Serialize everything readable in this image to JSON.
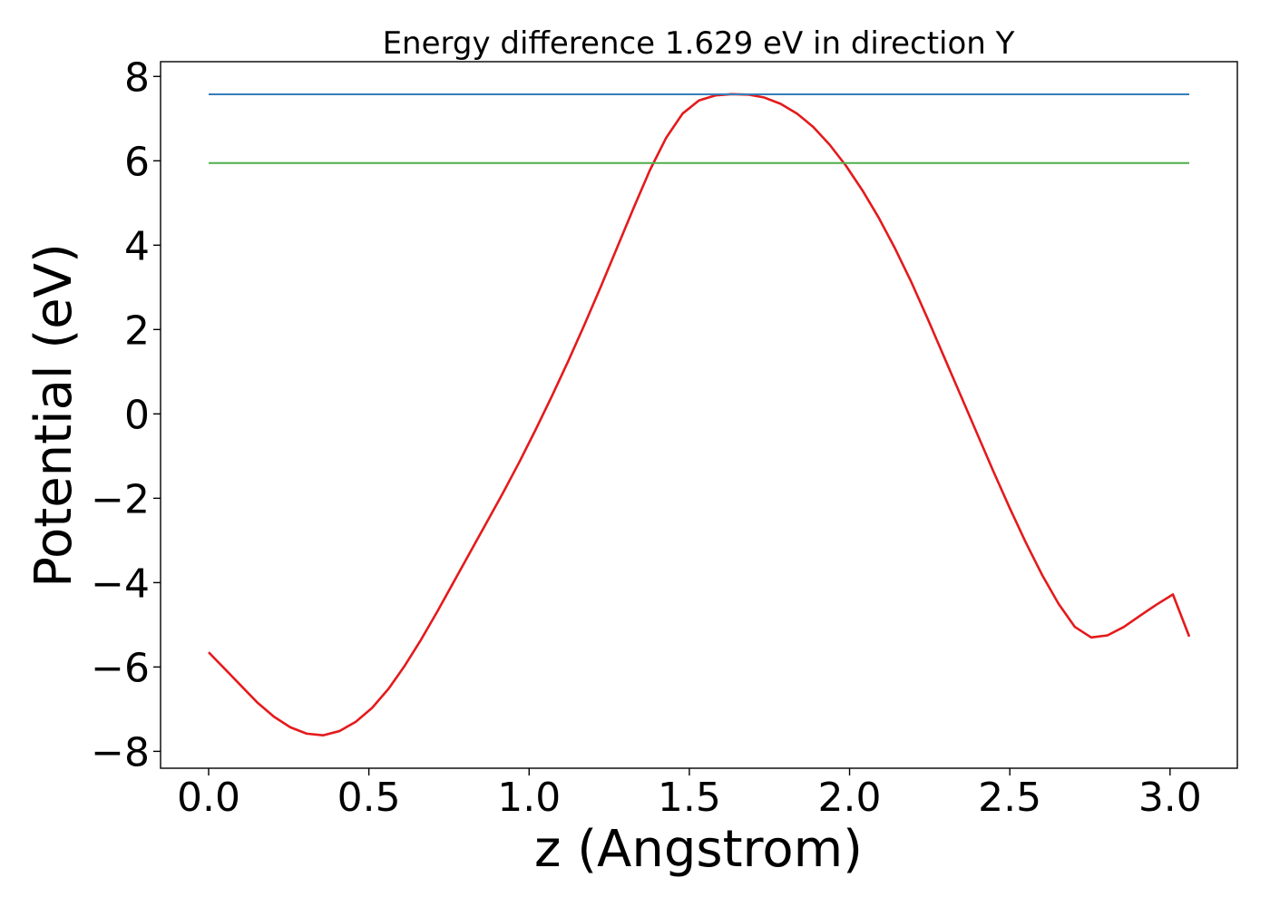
{
  "chart_data": {
    "type": "line",
    "title": "Energy difference 1.629 eV in direction Y",
    "xlabel": "z (Angstrom)",
    "ylabel": "Potential (eV)",
    "xlim": [
      -0.15,
      3.21
    ],
    "ylim": [
      -8.4,
      8.35
    ],
    "xticks": [
      0.0,
      0.5,
      1.0,
      1.5,
      2.0,
      2.5,
      3.0
    ],
    "xtick_labels": [
      "0.0",
      "0.5",
      "1.0",
      "1.5",
      "2.0",
      "2.5",
      "3.0"
    ],
    "yticks": [
      -8,
      -6,
      -4,
      -2,
      0,
      2,
      4,
      6,
      8
    ],
    "ytick_labels": [
      "−8",
      "−6",
      "−4",
      "−2",
      "0",
      "2",
      "4",
      "6",
      "8"
    ],
    "grid": false,
    "legend": "none",
    "colors": {
      "potential": "#e41a1c",
      "max_line": "#377eb8",
      "mean_line": "#4daf4a"
    },
    "series": [
      {
        "id": "potential",
        "style": "curve",
        "x": [
          0.0,
          0.051,
          0.102,
          0.153,
          0.204,
          0.255,
          0.306,
          0.357,
          0.408,
          0.459,
          0.51,
          0.561,
          0.612,
          0.663,
          0.714,
          0.765,
          0.816,
          0.867,
          0.918,
          0.969,
          1.02,
          1.071,
          1.122,
          1.173,
          1.224,
          1.275,
          1.326,
          1.377,
          1.428,
          1.479,
          1.53,
          1.581,
          1.632,
          1.683,
          1.734,
          1.785,
          1.836,
          1.887,
          1.938,
          1.989,
          2.04,
          2.091,
          2.142,
          2.193,
          2.244,
          2.295,
          2.346,
          2.397,
          2.448,
          2.499,
          2.55,
          2.601,
          2.652,
          2.703,
          2.754,
          2.805,
          2.856,
          2.907,
          2.958,
          3.009,
          3.06
        ],
        "y": [
          -5.65,
          -6.05,
          -6.45,
          -6.85,
          -7.18,
          -7.43,
          -7.58,
          -7.62,
          -7.52,
          -7.3,
          -6.97,
          -6.52,
          -5.97,
          -5.35,
          -4.68,
          -3.98,
          -3.28,
          -2.58,
          -1.88,
          -1.15,
          -0.38,
          0.42,
          1.25,
          2.12,
          3.02,
          3.95,
          4.88,
          5.78,
          6.55,
          7.12,
          7.43,
          7.55,
          7.58,
          7.57,
          7.5,
          7.35,
          7.12,
          6.8,
          6.38,
          5.88,
          5.3,
          4.65,
          3.92,
          3.12,
          2.25,
          1.35,
          0.45,
          -0.45,
          -1.35,
          -2.22,
          -3.05,
          -3.82,
          -4.5,
          -5.05,
          -5.3,
          -5.25,
          -5.05,
          -4.78,
          -4.52,
          -4.28,
          -5.28
        ]
      },
      {
        "id": "max_line",
        "style": "hline",
        "x": [
          0.0,
          3.06
        ],
        "y": [
          7.575,
          7.575
        ]
      },
      {
        "id": "mean_line",
        "style": "hline",
        "x": [
          0.0,
          3.06
        ],
        "y": [
          5.946,
          5.946
        ]
      }
    ]
  }
}
